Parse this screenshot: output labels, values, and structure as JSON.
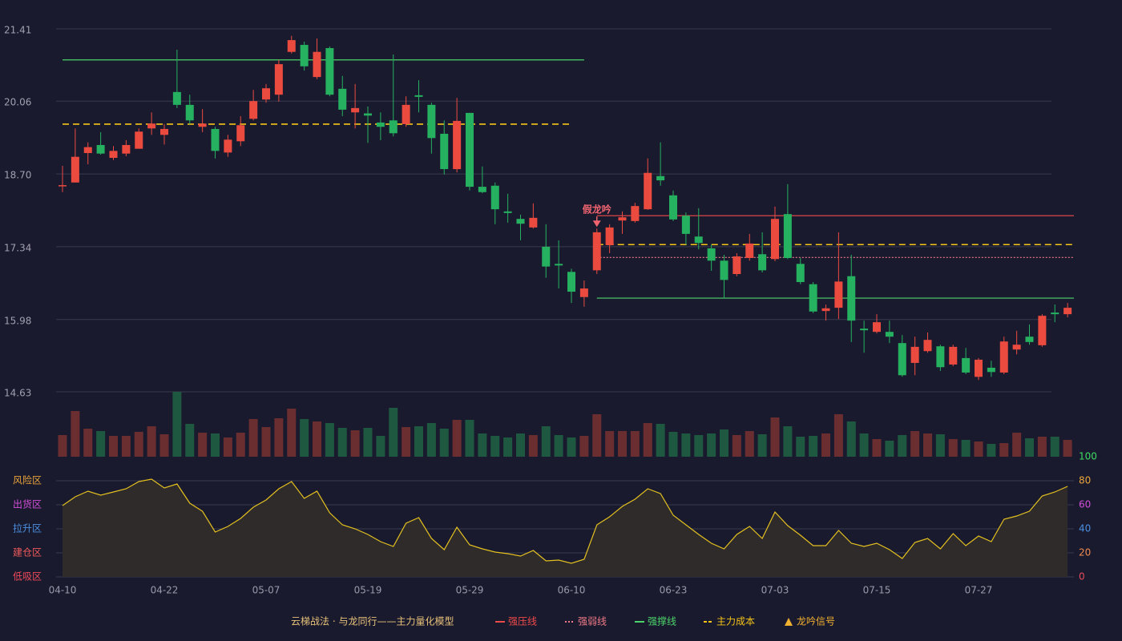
{
  "chart_data": [
    {
      "type": "candlestick",
      "categories": [
        "04-10",
        null,
        null,
        null,
        null,
        null,
        null,
        null,
        "04-22",
        null,
        null,
        null,
        null,
        null,
        null,
        null,
        "05-07",
        null,
        null,
        null,
        null,
        null,
        null,
        null,
        "05-19",
        null,
        null,
        null,
        null,
        null,
        null,
        null,
        "05-29",
        null,
        null,
        null,
        null,
        null,
        null,
        null,
        "06-10",
        null,
        null,
        null,
        null,
        null,
        null,
        null,
        "06-23",
        null,
        null,
        null,
        null,
        null,
        null,
        null,
        "07-03",
        null,
        null,
        null,
        null,
        null,
        null,
        null,
        "07-15",
        null,
        null,
        null,
        null,
        null,
        null,
        null,
        "07-27",
        null,
        null,
        null,
        null,
        null,
        null,
        null
      ],
      "open": [
        18.47,
        18.54,
        19.09,
        19.24,
        19.0,
        19.08,
        19.17,
        19.55,
        19.43,
        20.23,
        19.99,
        19.58,
        19.54,
        19.1,
        19.31,
        19.73,
        20.09,
        20.18,
        20.98,
        21.11,
        20.51,
        21.05,
        20.29,
        19.85,
        19.83,
        19.66,
        19.7,
        19.63,
        20.17,
        19.99,
        19.45,
        18.79,
        19.84,
        18.46,
        18.48,
        18.0,
        17.86,
        17.7,
        17.34,
        17.02,
        16.87,
        16.4,
        16.9,
        17.37,
        17.83,
        17.82,
        18.04,
        18.66,
        18.3,
        17.92,
        17.53,
        17.31,
        17.08,
        16.83,
        17.13,
        17.2,
        17.11,
        17.95,
        17.02,
        16.64,
        16.14,
        16.2,
        16.79,
        15.81,
        15.75,
        15.75,
        15.54,
        15.17,
        15.39,
        15.48,
        15.14,
        15.26,
        14.91,
        15.08,
        14.99,
        15.42,
        15.66,
        15.5,
        16.11,
        16.08
      ],
      "high": [
        18.85,
        19.55,
        19.29,
        19.48,
        19.22,
        19.33,
        19.55,
        19.85,
        19.63,
        21.02,
        20.18,
        19.91,
        19.58,
        19.43,
        19.78,
        20.27,
        20.38,
        20.83,
        21.28,
        21.17,
        21.23,
        21.08,
        20.53,
        20.38,
        19.96,
        19.85,
        20.93,
        20.15,
        20.45,
        20.03,
        19.7,
        20.12,
        19.84,
        18.84,
        18.54,
        18.33,
        17.94,
        18.15,
        17.76,
        17.46,
        16.93,
        16.71,
        17.68,
        17.76,
        18.0,
        18.16,
        18.99,
        19.29,
        18.39,
        17.98,
        18.06,
        17.38,
        17.19,
        17.22,
        17.58,
        17.61,
        18.09,
        18.51,
        17.13,
        16.68,
        16.26,
        17.61,
        17.19,
        15.96,
        16.08,
        15.96,
        15.69,
        15.66,
        15.74,
        15.51,
        15.51,
        15.45,
        15.26,
        15.21,
        15.66,
        15.77,
        15.89,
        16.08,
        16.26,
        16.29
      ],
      "low": [
        18.36,
        18.54,
        18.88,
        19.06,
        18.96,
        19.03,
        19.17,
        19.43,
        19.25,
        19.93,
        19.63,
        19.48,
        18.99,
        19.02,
        19.22,
        19.7,
        20.03,
        20.05,
        20.95,
        20.63,
        20.47,
        20.15,
        19.78,
        19.55,
        19.28,
        19.33,
        19.4,
        19.58,
        19.85,
        19.08,
        18.69,
        18.73,
        18.39,
        18.34,
        17.76,
        17.79,
        17.46,
        17.68,
        16.76,
        16.56,
        16.29,
        16.22,
        16.83,
        17.22,
        17.58,
        17.79,
        18.03,
        18.48,
        17.82,
        17.38,
        17.29,
        16.89,
        16.38,
        16.79,
        17.08,
        16.86,
        17.07,
        17.11,
        16.64,
        16.1,
        15.96,
        15.99,
        15.56,
        15.36,
        15.72,
        15.54,
        14.91,
        14.94,
        15.36,
        15.02,
        15.11,
        14.96,
        14.85,
        14.91,
        14.96,
        15.33,
        15.51,
        15.47,
        15.93,
        16.02
      ],
      "close": [
        18.49,
        19.02,
        19.2,
        19.08,
        19.13,
        19.24,
        19.49,
        19.64,
        19.54,
        19.99,
        19.7,
        19.64,
        19.13,
        19.34,
        19.61,
        20.06,
        20.3,
        20.75,
        21.2,
        20.71,
        20.98,
        20.18,
        19.9,
        19.93,
        19.79,
        19.58,
        19.46,
        19.99,
        20.14,
        19.37,
        18.79,
        19.69,
        18.46,
        18.36,
        18.04,
        17.97,
        17.77,
        17.88,
        16.97,
        16.99,
        16.5,
        16.56,
        17.61,
        17.7,
        17.89,
        18.1,
        18.72,
        18.58,
        17.85,
        17.58,
        17.41,
        17.08,
        16.72,
        17.16,
        17.4,
        16.9,
        17.86,
        17.13,
        16.68,
        16.13,
        16.19,
        16.69,
        15.96,
        15.78,
        15.93,
        15.66,
        14.94,
        15.47,
        15.6,
        15.09,
        15.47,
        14.99,
        15.23,
        15.0,
        15.57,
        15.51,
        15.56,
        16.05,
        16.08,
        16.2
      ],
      "up_color": "#eb4b3f",
      "down_color": "#25b160",
      "ylim": [
        14.63,
        21.41
      ],
      "yticks": [
        21.41,
        20.06,
        {
          "value": 18.7,
          "label": "18.70"
        },
        17.34,
        15.98,
        14.63
      ],
      "grid": true,
      "levels": [
        {
          "name": "强压线",
          "color": "#ef4a4a",
          "style": "solid",
          "segments": [
            {
              "from": 42,
              "to": 79,
              "value": 17.92
            }
          ]
        },
        {
          "name": "强弱线",
          "color": "#f07a86",
          "style": "dotted",
          "segments": [
            {
              "from": 42,
              "to": 79,
              "value": 17.14
            }
          ]
        },
        {
          "name": "强撑线",
          "color": "#4cd46a",
          "style": "solid",
          "segments": [
            {
              "from": 0,
              "to": 41,
              "value": 20.83
            },
            {
              "from": 42,
              "to": 79,
              "value": 16.38
            }
          ]
        },
        {
          "name": "主力成本",
          "color": "#f5c518",
          "style": "dashed",
          "segments": [
            {
              "from": 0,
              "to": 40,
              "value": 19.63
            },
            {
              "from": 42,
              "to": 79,
              "value": 17.38
            }
          ]
        }
      ],
      "signals": [
        {
          "index": 42,
          "label": "假龙吟"
        }
      ],
      "signal_name": "龙吟信号",
      "signal_color": "#f0b030",
      "signal_label_color": "#f06470"
    },
    {
      "type": "bar",
      "values": [
        27,
        57,
        35,
        32,
        26,
        26,
        31,
        38,
        28,
        81,
        41,
        30,
        29,
        24,
        30,
        47,
        37,
        48,
        60,
        47,
        44,
        42,
        36,
        33,
        36,
        26,
        61,
        37,
        38,
        42,
        35,
        46,
        46,
        29,
        26,
        24,
        29,
        27,
        38,
        27,
        24,
        26,
        53,
        32,
        32,
        32,
        42,
        41,
        31,
        29,
        27,
        29,
        34,
        27,
        32,
        28,
        49,
        38,
        25,
        26,
        29,
        53,
        44,
        29,
        22,
        20,
        27,
        32,
        29,
        28,
        22,
        21,
        19,
        16,
        17,
        30,
        23,
        25,
        25,
        21
      ],
      "up_color": "#6a2d30",
      "down_color": "#1f5840",
      "ylim": [
        0,
        81
      ]
    },
    {
      "type": "area",
      "values": [
        59.3,
        66.7,
        71.3,
        68,
        70.7,
        73.3,
        79.3,
        81.3,
        74,
        77.3,
        61.3,
        54.7,
        37.3,
        42,
        48.7,
        58,
        64,
        73.3,
        79.3,
        65.3,
        71.3,
        53.3,
        43.3,
        40,
        35.3,
        29.3,
        25.3,
        44.7,
        49.3,
        32,
        22.7,
        41.3,
        26.7,
        23.3,
        20.7,
        19.3,
        17.3,
        22,
        13.3,
        14,
        11.3,
        14.7,
        43.3,
        50,
        58.7,
        64.7,
        73.3,
        69.3,
        51.3,
        43.3,
        35.3,
        28,
        23.3,
        35.3,
        42,
        32,
        54,
        42.7,
        34.7,
        26,
        26,
        38.7,
        28,
        25.3,
        28,
        22.7,
        15.3,
        28.7,
        32,
        23.3,
        36,
        26,
        34,
        29.3,
        48,
        50.7,
        54.7,
        67.3,
        70.7,
        75.3
      ],
      "color": "#e3c020",
      "fill": "#2e2b2a",
      "ylim": [
        0,
        100
      ],
      "yticks": [
        0,
        20,
        40,
        60,
        80,
        100
      ],
      "ytick_colors": [
        "#e74c5a",
        "#ef8a50",
        "#4a90e2",
        "#d24ed8",
        "#e8a33a",
        "#3ddc63"
      ],
      "grid": true,
      "zones": [
        {
          "label": "风险区",
          "value": 80,
          "color": "#e8a33a"
        },
        {
          "label": "出货区",
          "value": 60,
          "color": "#d24ed8"
        },
        {
          "label": "拉升区",
          "value": 40,
          "color": "#4a90e2"
        },
        {
          "label": "建仓区",
          "value": 20,
          "color": "#ef5b5b"
        },
        {
          "label": "低吸区",
          "value": 0,
          "color": "#ef4a5a"
        }
      ]
    }
  ],
  "footer": {
    "title": "云梯战法 · 与龙同行——主力量化模型",
    "color": "#e8c27a"
  }
}
